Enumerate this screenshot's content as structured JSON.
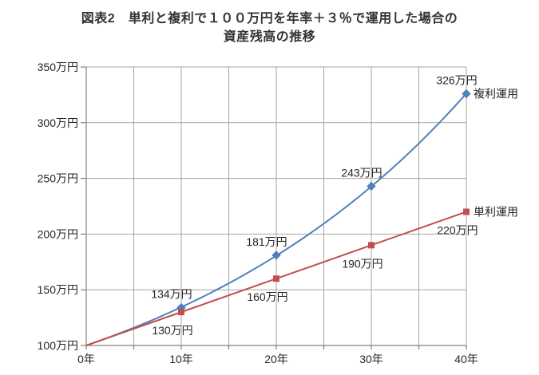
{
  "title": {
    "line1": "図表2　単利と複利で１００万円を年率＋３％で運用した場合の",
    "line2": "資産残高の推移"
  },
  "chart_data": {
    "type": "line",
    "title": "図表2　単利と複利で１００万円を年率＋３％で運用した場合の資産残高の推移",
    "xlabel": "",
    "ylabel": "",
    "xlim": [
      0,
      40
    ],
    "ylim": [
      100,
      350
    ],
    "x_ticks": [
      0,
      10,
      20,
      30,
      40
    ],
    "x_tick_labels": [
      "0年",
      "10年",
      "20年",
      "30年",
      "40年"
    ],
    "x_grid_step": 5,
    "y_ticks": [
      100,
      150,
      200,
      250,
      300,
      350
    ],
    "y_tick_labels": [
      "100万円",
      "150万円",
      "200万円",
      "250万円",
      "300万円",
      "350万円"
    ],
    "grid": true,
    "legend_position": "right-of-line-end",
    "principal": 100,
    "annual_rate_percent": 3,
    "series": [
      {
        "name": "複利運用",
        "growth": "compound",
        "color": "#4F81BD",
        "marker": "diamond",
        "points": [
          {
            "year": 0,
            "value": 100,
            "label": ""
          },
          {
            "year": 10,
            "value": 134,
            "label": "134万円"
          },
          {
            "year": 20,
            "value": 181,
            "label": "181万円"
          },
          {
            "year": 30,
            "value": 243,
            "label": "243万円"
          },
          {
            "year": 40,
            "value": 326,
            "label": "326万円"
          }
        ]
      },
      {
        "name": "単利運用",
        "growth": "simple",
        "color": "#C0504D",
        "marker": "square",
        "points": [
          {
            "year": 0,
            "value": 100,
            "label": ""
          },
          {
            "year": 10,
            "value": 130,
            "label": "130万円"
          },
          {
            "year": 20,
            "value": 160,
            "label": "160万円"
          },
          {
            "year": 30,
            "value": 190,
            "label": "190万円"
          },
          {
            "year": 40,
            "value": 220,
            "label": "220万円"
          }
        ]
      }
    ],
    "colors": {
      "gridline": "#A6A6A6",
      "axis": "#808080",
      "text": "#262626",
      "title_text": "#333333"
    }
  }
}
